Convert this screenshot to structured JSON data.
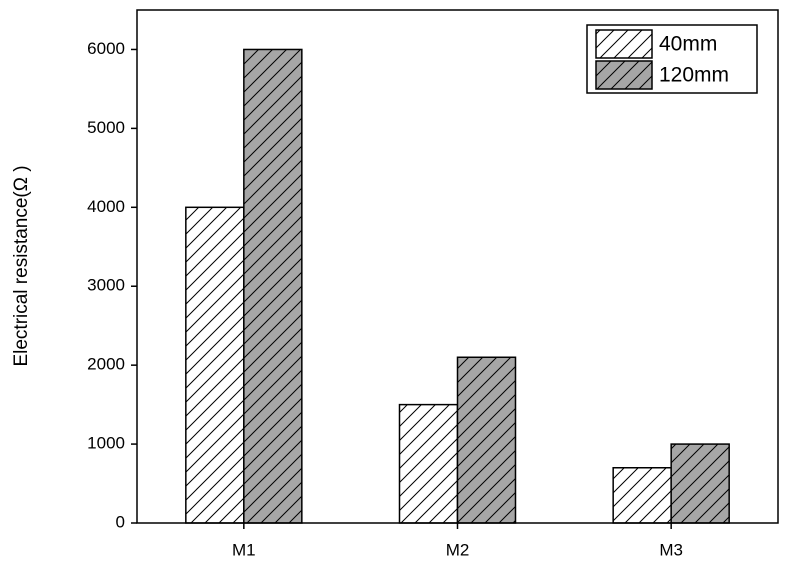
{
  "chart_data": {
    "type": "bar",
    "y_label": "Electrical resistance(Ω )",
    "categories": [
      "M1",
      "M2",
      "M3"
    ],
    "series": [
      {
        "name": "40mm",
        "color": "#ffffff",
        "values": [
          4000,
          1500,
          700
        ]
      },
      {
        "name": "120mm",
        "color": "#a6a6a6",
        "values": [
          6000,
          2100,
          1000
        ]
      }
    ],
    "ylim": [
      0,
      6500
    ],
    "yticks": [
      0,
      1000,
      2000,
      3000,
      4000,
      5000,
      6000
    ],
    "grid": false,
    "legend": "upper right"
  }
}
